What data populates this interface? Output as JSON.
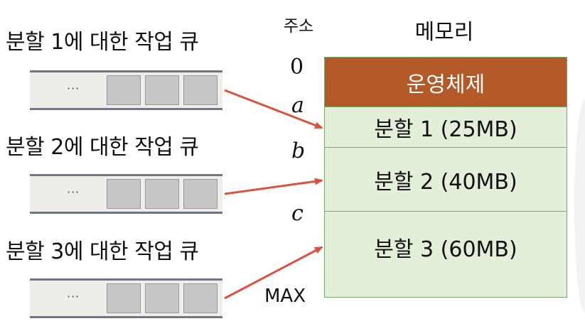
{
  "queues": [
    {
      "title": "분할 1에 대한 작업 큐",
      "dots": "···"
    },
    {
      "title": "분할 2에 대한 작업 큐",
      "dots": "···"
    },
    {
      "title": "분할 3에 대한 작업 큐",
      "dots": "···"
    }
  ],
  "address": {
    "title": "주소",
    "zero": "0",
    "a": "a",
    "b": "b",
    "c": "c",
    "max": "MAX"
  },
  "memory": {
    "title": "메모리",
    "os": "운영체제",
    "partition1": "분할 1 (25MB)",
    "partition2": "분할 2 (40MB)",
    "partition3": "분할 3 (60MB)"
  },
  "colors": {
    "os_fill": "#b35a28",
    "partition_fill": "#e3efd9",
    "partition_border": "#7ba86e",
    "arrow": "#d9543f",
    "queue_border": "#6f7785",
    "queue_fill": "#efedea",
    "job_fill": "#c6c6c6"
  }
}
